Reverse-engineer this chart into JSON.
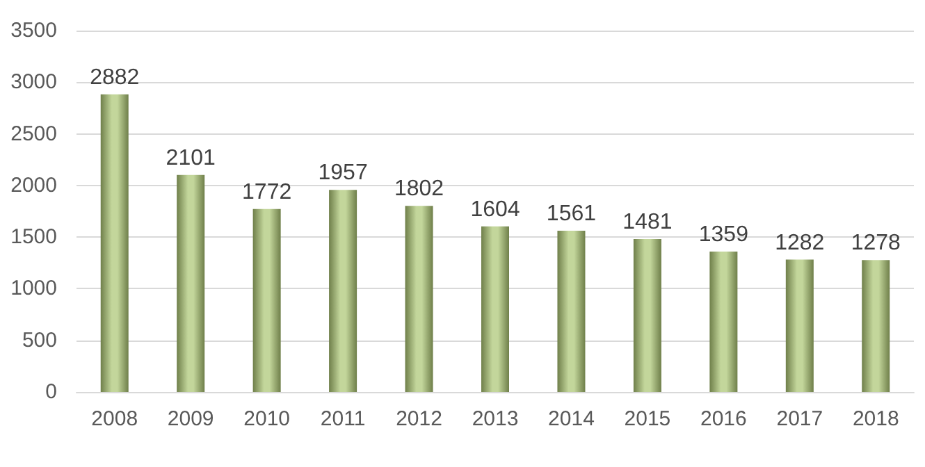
{
  "chart_data": {
    "type": "bar",
    "categories": [
      "2008",
      "2009",
      "2010",
      "2011",
      "2012",
      "2013",
      "2014",
      "2015",
      "2016",
      "2017",
      "2018"
    ],
    "values": [
      2882,
      2101,
      1772,
      1957,
      1802,
      1604,
      1561,
      1481,
      1359,
      1282,
      1278
    ],
    "color": "#c3d69b",
    "ylim": [
      0,
      3500
    ],
    "yticks": [
      0,
      500,
      1000,
      1500,
      2000,
      2500,
      3000,
      3500
    ],
    "grid": "y",
    "data_labels": true
  }
}
